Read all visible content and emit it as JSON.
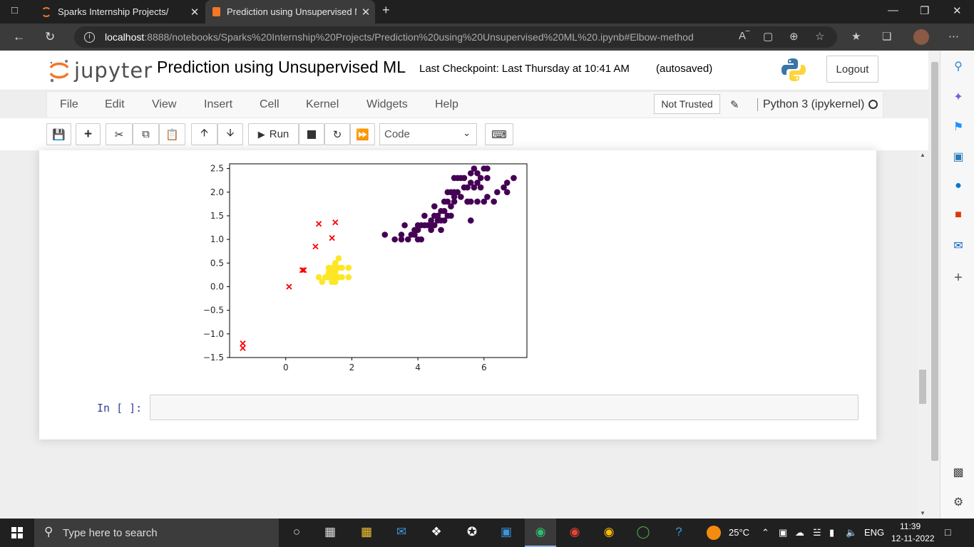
{
  "browser": {
    "tabs": [
      {
        "title": "Sparks Internship Projects/"
      },
      {
        "title": "Prediction using Unsupervised M"
      }
    ],
    "url_host": "localhost",
    "url_rest": ":8888/notebooks/Sparks%20Internship%20Projects/Prediction%20using%20Unsupervised%20ML%20.ipynb#Elbow-method"
  },
  "header": {
    "logo_text": "jupyter",
    "notebook_title": "Prediction using Unsupervised ML",
    "checkpoint": "Last Checkpoint: Last Thursday at 10:41 AM",
    "autosaved": "(autosaved)",
    "logout": "Logout"
  },
  "menu": {
    "items": [
      "File",
      "Edit",
      "View",
      "Insert",
      "Cell",
      "Kernel",
      "Widgets",
      "Help"
    ],
    "not_trusted": "Not Trusted",
    "kernel_name": "Python 3 (ipykernel)"
  },
  "toolbar": {
    "run_label": "Run",
    "cell_type": "Code"
  },
  "cell": {
    "prompt": "In [ ]:"
  },
  "chart_data": {
    "type": "scatter",
    "xlim": [
      -1.7,
      7.3
    ],
    "ylim": [
      -1.5,
      2.6
    ],
    "xticks": [
      "0",
      "2",
      "4",
      "6"
    ],
    "xtick_values": [
      0,
      2,
      4,
      6
    ],
    "yticks": [
      "2.5",
      "2.0",
      "1.5",
      "1.0",
      "0.5",
      "0.0",
      "−0.5",
      "−1.0",
      "−1.5"
    ],
    "ytick_values": [
      2.5,
      2.0,
      1.5,
      1.0,
      0.5,
      0.0,
      -0.5,
      -1.0,
      -1.5
    ],
    "series": [
      {
        "color": "#440154",
        "marker": "circle",
        "points": [
          [
            3.0,
            1.1
          ],
          [
            3.3,
            1.0
          ],
          [
            3.5,
            1.0
          ],
          [
            3.7,
            1.0
          ],
          [
            3.5,
            1.1
          ],
          [
            3.6,
            1.3
          ],
          [
            3.8,
            1.1
          ],
          [
            3.9,
            1.1
          ],
          [
            3.9,
            1.2
          ],
          [
            4.0,
            1.0
          ],
          [
            4.0,
            1.3
          ],
          [
            4.1,
            1.0
          ],
          [
            4.1,
            1.3
          ],
          [
            4.2,
            1.3
          ],
          [
            4.3,
            1.3
          ],
          [
            4.4,
            1.3
          ],
          [
            4.4,
            1.4
          ],
          [
            4.5,
            1.5
          ],
          [
            4.5,
            1.3
          ],
          [
            4.6,
            1.4
          ],
          [
            4.7,
            1.4
          ],
          [
            4.7,
            1.6
          ],
          [
            4.8,
            1.4
          ],
          [
            4.9,
            1.5
          ],
          [
            5.0,
            1.7
          ],
          [
            4.5,
            1.7
          ],
          [
            4.7,
            1.2
          ],
          [
            4.2,
            1.5
          ],
          [
            4.9,
            1.8
          ],
          [
            5.1,
            1.8
          ],
          [
            5.1,
            1.9
          ],
          [
            5.1,
            2.0
          ],
          [
            5.2,
            2.0
          ],
          [
            5.3,
            1.9
          ],
          [
            5.4,
            2.1
          ],
          [
            5.5,
            1.8
          ],
          [
            5.5,
            2.1
          ],
          [
            5.6,
            2.4
          ],
          [
            5.6,
            1.8
          ],
          [
            5.7,
            2.1
          ],
          [
            5.8,
            1.8
          ],
          [
            5.8,
            2.2
          ],
          [
            5.9,
            2.3
          ],
          [
            6.0,
            1.8
          ],
          [
            6.1,
            2.3
          ],
          [
            6.1,
            2.5
          ],
          [
            5.0,
            2.0
          ],
          [
            5.1,
            2.3
          ],
          [
            5.3,
            2.3
          ],
          [
            5.4,
            2.3
          ],
          [
            5.6,
            2.2
          ],
          [
            5.7,
            2.5
          ],
          [
            5.9,
            2.1
          ],
          [
            6.0,
            2.5
          ],
          [
            6.1,
            1.9
          ],
          [
            6.3,
            1.8
          ],
          [
            6.6,
            2.1
          ],
          [
            6.7,
            2.2
          ],
          [
            6.9,
            2.3
          ],
          [
            5.6,
            1.4
          ],
          [
            5.2,
            2.3
          ],
          [
            5.5,
            1.8
          ],
          [
            4.9,
            2.0
          ],
          [
            4.8,
            1.8
          ],
          [
            4.6,
            1.5
          ],
          [
            5.0,
            1.5
          ],
          [
            5.8,
            2.4
          ],
          [
            6.4,
            2.0
          ],
          [
            6.7,
            2.0
          ],
          [
            4.0,
            1.2
          ],
          [
            4.4,
            1.2
          ],
          [
            4.8,
            1.6
          ]
        ]
      },
      {
        "color": "#fde725",
        "marker": "circle",
        "points": [
          [
            1.4,
            0.2
          ],
          [
            1.3,
            0.2
          ],
          [
            1.5,
            0.2
          ],
          [
            1.4,
            0.4
          ],
          [
            1.7,
            0.4
          ],
          [
            1.4,
            0.3
          ],
          [
            1.5,
            0.1
          ],
          [
            1.6,
            0.2
          ],
          [
            1.1,
            0.1
          ],
          [
            1.2,
            0.2
          ],
          [
            1.3,
            0.4
          ],
          [
            1.5,
            0.4
          ],
          [
            1.6,
            0.6
          ],
          [
            1.9,
            0.2
          ],
          [
            1.9,
            0.4
          ],
          [
            1.0,
            0.2
          ],
          [
            1.7,
            0.2
          ],
          [
            1.6,
            0.4
          ],
          [
            1.5,
            0.3
          ],
          [
            1.3,
            0.3
          ],
          [
            1.4,
            0.1
          ],
          [
            1.2,
            0.2
          ],
          [
            1.5,
            0.5
          ]
        ]
      },
      {
        "color": "#ff0000",
        "marker": "x",
        "points": [
          [
            -1.3,
            -1.3
          ],
          [
            -1.3,
            -1.2
          ],
          [
            0.1,
            0.0
          ],
          [
            0.5,
            0.35
          ],
          [
            0.55,
            0.35
          ],
          [
            0.9,
            0.85
          ],
          [
            1.0,
            1.33
          ],
          [
            1.4,
            1.03
          ],
          [
            1.5,
            1.36
          ]
        ]
      }
    ]
  }
}
